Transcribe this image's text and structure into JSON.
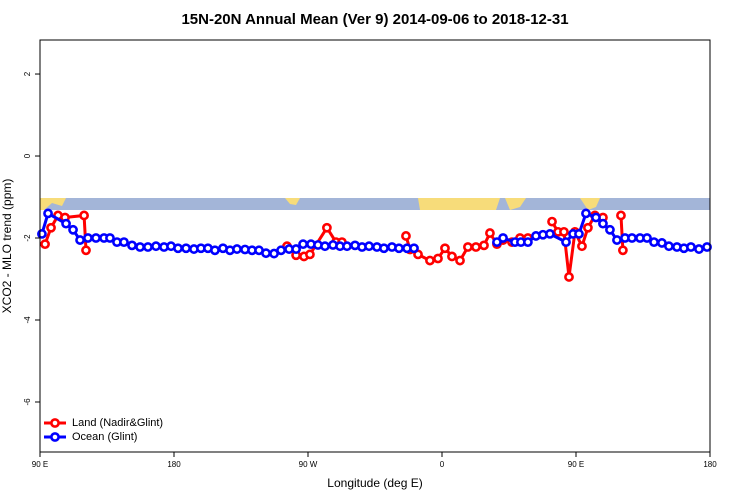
{
  "chart_data": {
    "type": "line",
    "title": "15N-20N Annual Mean (Ver 9)   2014-09-06 to 2018-12-31",
    "xlabel": "Longitude (deg E)",
    "ylabel": "XCO2 - MLO trend (ppm)",
    "xlim": [
      90,
      540
    ],
    "xticks": [
      {
        "value": 90,
        "label": "90 E"
      },
      180,
      {
        "value": 270,
        "label": "90 W"
      },
      {
        "value": 360,
        "label": "0"
      },
      {
        "value": 450,
        "label": "90 E"
      },
      {
        "value": 540,
        "label": "180"
      }
    ],
    "ylim": [
      -7.22,
      2.83
    ],
    "yticks": [
      2,
      0,
      -2,
      -4,
      -6
    ],
    "legend": "bottom-left",
    "series": [
      {
        "name": "Land (Nadir&Glint)",
        "color": "#ff0000",
        "x": [
          93.4,
          97.4,
          102.1,
          106.8,
          119.6,
          120.9,
          null,
          255.9,
          262.0,
          267.3,
          271.3,
          282.7,
          288.8,
          292.8,
          null,
          335.8,
          338.5,
          343.9,
          351.9,
          357.3,
          362.0,
          366.7,
          372.1,
          377.4,
          382.8,
          388.2,
          392.2,
          396.9,
          401.0,
          407.0,
          412.4,
          417.7,
          null,
          433.9,
          437.9,
          441.9,
          445.3,
          449.3,
          454.0,
          458.0,
          462.7,
          468.1,
          null,
          480.2,
          481.5
        ],
        "values": [
          -2.15,
          -1.75,
          -1.45,
          -1.5,
          -1.45,
          -2.3,
          null,
          -2.2,
          -2.42,
          -2.45,
          -2.4,
          -1.75,
          -2.1,
          -2.1,
          null,
          -1.95,
          -2.28,
          -2.4,
          -2.55,
          -2.5,
          -2.25,
          -2.45,
          -2.55,
          -2.22,
          -2.22,
          -2.18,
          -1.88,
          -2.15,
          -2.05,
          -2.1,
          -2.0,
          -2.0,
          null,
          -1.6,
          -1.85,
          -1.85,
          -2.95,
          -1.85,
          -2.2,
          -1.75,
          -1.45,
          -1.5,
          null,
          -1.45,
          -2.3
        ]
      },
      {
        "name": "Ocean (Glint)",
        "color": "#0000ff",
        "x": [
          91.3,
          95.4,
          107.5,
          112.2,
          116.9,
          122.2,
          127.6,
          133.0,
          137.0,
          141.7,
          146.4,
          151.8,
          157.2,
          162.5,
          167.9,
          173.3,
          178.0,
          182.7,
          188.1,
          193.4,
          198.1,
          202.8,
          207.5,
          212.9,
          217.6,
          222.3,
          227.7,
          232.4,
          237.1,
          241.8,
          247.2,
          251.9,
          257.3,
          262.0,
          266.7,
          272.0,
          276.7,
          281.4,
          286.8,
          291.5,
          296.2,
          301.6,
          306.3,
          311.0,
          316.3,
          321.0,
          326.4,
          331.1,
          336.5,
          341.2,
          null,
          396.9,
          401.0,
          409.0,
          413.0,
          417.7,
          423.1,
          427.8,
          432.5,
          443.3,
          448.0,
          452.0,
          456.7,
          463.4,
          468.1,
          472.8,
          477.5,
          482.9,
          487.6,
          493.0,
          497.7,
          502.4,
          507.7,
          512.4,
          517.8,
          522.5,
          527.2,
          532.6,
          538.0
        ],
        "values": [
          -1.9,
          -1.4,
          -1.65,
          -1.8,
          -2.05,
          -2.0,
          -2.0,
          -2.0,
          -2.0,
          -2.1,
          -2.1,
          -2.18,
          -2.22,
          -2.22,
          -2.2,
          -2.22,
          -2.2,
          -2.25,
          -2.25,
          -2.27,
          -2.25,
          -2.25,
          -2.3,
          -2.25,
          -2.3,
          -2.27,
          -2.28,
          -2.3,
          -2.3,
          -2.37,
          -2.38,
          -2.3,
          -2.27,
          -2.27,
          -2.15,
          -2.15,
          -2.17,
          -2.2,
          -2.17,
          -2.2,
          -2.2,
          -2.18,
          -2.22,
          -2.2,
          -2.22,
          -2.25,
          -2.22,
          -2.25,
          -2.25,
          -2.25,
          null,
          -2.1,
          -2.0,
          -2.1,
          -2.1,
          -2.1,
          -1.95,
          -1.92,
          -1.9,
          -2.1,
          -1.9,
          -1.9,
          -1.4,
          -1.5,
          -1.65,
          -1.8,
          -2.05,
          -2.0,
          -2.0,
          -2.0,
          -2.0,
          -2.1,
          -2.12,
          -2.2,
          -2.22,
          -2.25,
          -2.22,
          -2.27,
          -2.22
        ]
      }
    ]
  }
}
